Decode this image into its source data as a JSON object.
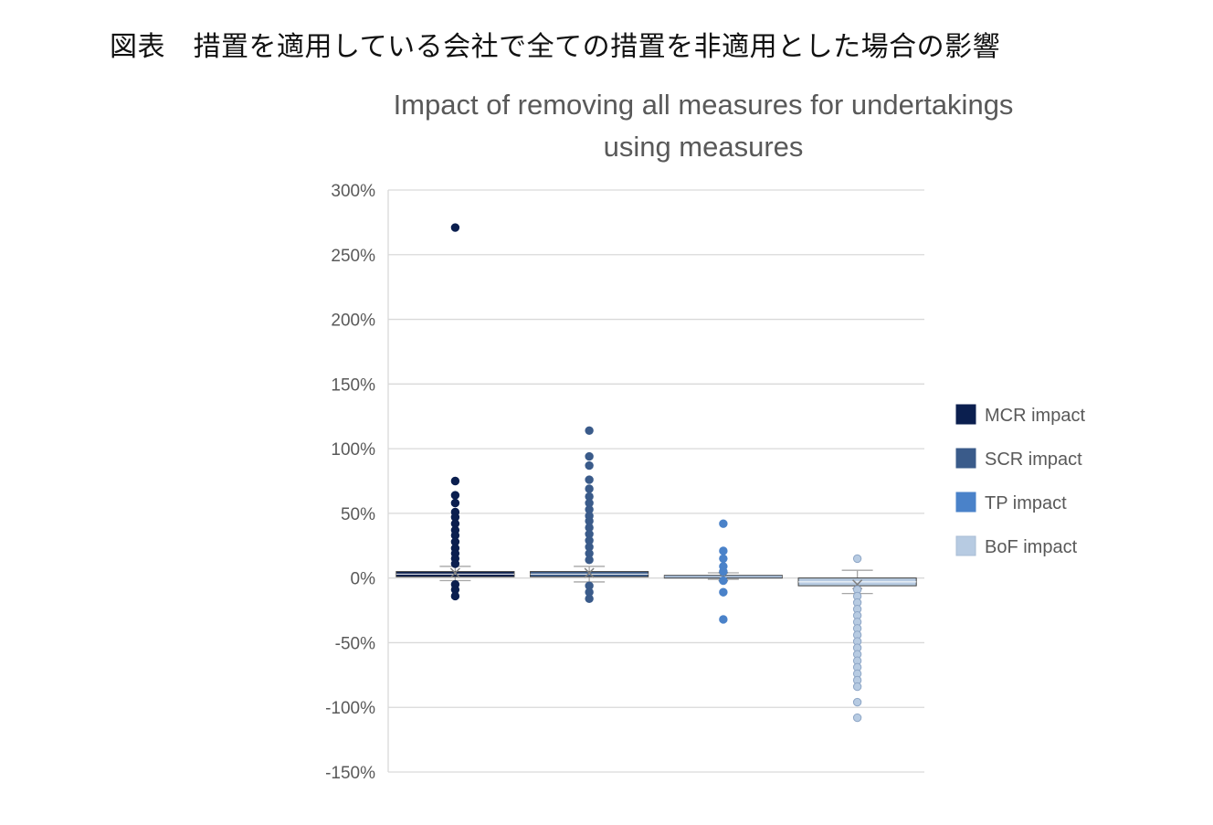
{
  "caption": "図表　措置を適用している会社で全ての措置を非適用とした場合の影響",
  "chart_data": {
    "type": "box",
    "title_line1": "Impact of removing all measures for undertakings",
    "title_line2": "using measures",
    "ylim": [
      -150,
      300
    ],
    "yticks": [
      {
        "value": 300,
        "label": "300%"
      },
      {
        "value": 250,
        "label": "250%"
      },
      {
        "value": 200,
        "label": "200%"
      },
      {
        "value": 150,
        "label": "150%"
      },
      {
        "value": 100,
        "label": "100%"
      },
      {
        "value": 50,
        "label": "50%"
      },
      {
        "value": 0,
        "label": "0%"
      },
      {
        "value": -50,
        "label": "-50%"
      },
      {
        "value": -100,
        "label": "-100%"
      },
      {
        "value": -150,
        "label": "-150%"
      }
    ],
    "grid": true,
    "legend_position": "right",
    "series": [
      {
        "name": "MCR impact",
        "color": "#0b1f4f",
        "q1": 1,
        "median": 3,
        "q3": 5,
        "whisker_low": -2,
        "whisker_high": 9,
        "mean": 4,
        "outliers": [
          271,
          75,
          64,
          58,
          51,
          47,
          42,
          37,
          33,
          28,
          23,
          19,
          15,
          11,
          -5,
          -9,
          -14
        ]
      },
      {
        "name": "SCR impact",
        "color": "#3a5b8a",
        "q1": 1,
        "median": 3,
        "q3": 5,
        "whisker_low": -3,
        "whisker_high": 9,
        "mean": 4,
        "outliers": [
          114,
          94,
          87,
          76,
          69,
          63,
          58,
          53,
          48,
          44,
          39,
          34,
          29,
          24,
          19,
          14,
          -6,
          -11,
          -16
        ]
      },
      {
        "name": "TP impact",
        "color": "#4a82c9",
        "q1": 0,
        "median": 1,
        "q3": 2,
        "whisker_low": -1,
        "whisker_high": 4,
        "mean": 1,
        "outliers": [
          42,
          21,
          15,
          9,
          5,
          -2,
          -11,
          -32
        ]
      },
      {
        "name": "BoF impact",
        "color": "#b7cbe2",
        "q1": -6,
        "median": -3,
        "q3": 0,
        "whisker_low": -12,
        "whisker_high": 6,
        "mean": -5,
        "outliers": [
          15,
          -9,
          -14,
          -19,
          -24,
          -29,
          -34,
          -39,
          -44,
          -49,
          -54,
          -59,
          -64,
          -69,
          -74,
          -79,
          -84,
          -96,
          -108
        ]
      }
    ]
  }
}
